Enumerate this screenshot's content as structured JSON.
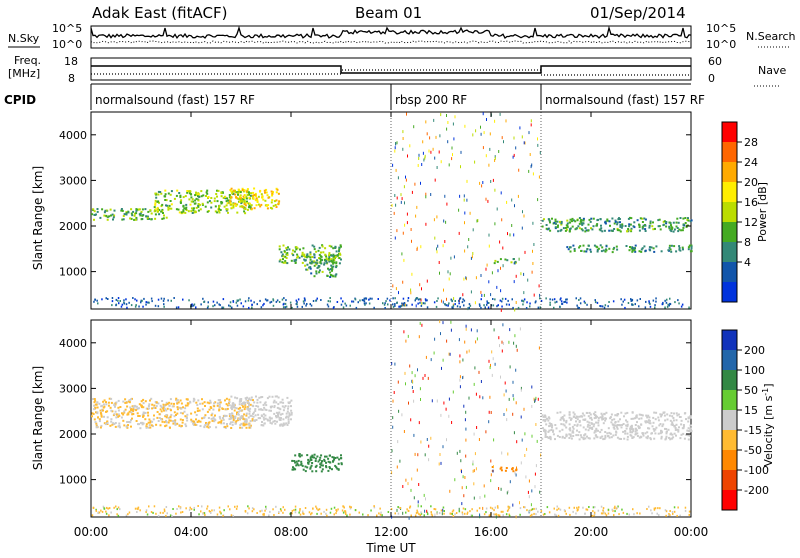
{
  "header": {
    "station": "Adak East (fitACF)",
    "beam": "Beam 01",
    "date": "01/Sep/2014"
  },
  "status_panels": {
    "left_labels": {
      "nsky": "N.Sky",
      "freq_top": "Freq.",
      "freq_unit": "[MHz]",
      "cpid": "CPID"
    },
    "right_labels": {
      "nsearch": "N.Search",
      "nave": "Nave"
    },
    "noise_ticks_left": [
      "10^5",
      "10^0"
    ],
    "noise_ticks_right": [
      "10^5",
      "10^0"
    ],
    "freq_ticks": [
      "18",
      "8"
    ],
    "nave_ticks": [
      "60",
      "0"
    ],
    "cpid_segments": [
      {
        "label": "normalsound (fast) 157 RF",
        "start_hour": 0,
        "end_hour": 12
      },
      {
        "label": "rbsp 200 RF",
        "start_hour": 12,
        "end_hour": 18
      },
      {
        "label": "normalsound (fast) 157 RF",
        "start_hour": 18,
        "end_hour": 24
      }
    ]
  },
  "chart_data": [
    {
      "type": "heatmap",
      "title": "Power",
      "ylabel": "Slant Range [km]",
      "xlabel": "",
      "xlim": [
        0,
        24
      ],
      "ylim": [
        180,
        4500
      ],
      "yticks": [
        1000,
        2000,
        3000,
        4000
      ],
      "colorbar": {
        "label": "Power [dB]",
        "ticks": [
          "28",
          "24",
          "20",
          "16",
          "12",
          "8",
          "4"
        ],
        "colors": [
          "#ff0000",
          "#ff6600",
          "#ffaa00",
          "#ffee00",
          "#bbdd00",
          "#44aa22",
          "#338877",
          "#1155aa",
          "#0033dd"
        ]
      },
      "regions": [
        {
          "t0": 0.0,
          "t1": 3.0,
          "r0": 2150,
          "r1": 2400,
          "value": 8
        },
        {
          "t0": 2.5,
          "t1": 6.5,
          "r0": 2300,
          "r1": 2800,
          "value": 10
        },
        {
          "t0": 5.5,
          "t1": 7.5,
          "r0": 2400,
          "r1": 2850,
          "value": 16
        },
        {
          "t0": 7.5,
          "t1": 10.0,
          "r0": 1200,
          "r1": 1600,
          "value": 8
        },
        {
          "t0": 8.5,
          "t1": 9.8,
          "r0": 900,
          "r1": 1400,
          "value": 6
        },
        {
          "t0": 16.0,
          "t1": 17.0,
          "r0": 1200,
          "r1": 1300,
          "value": 6
        },
        {
          "t0": 18.0,
          "t1": 24.0,
          "r0": 1900,
          "r1": 2200,
          "value": 6
        },
        {
          "t0": 19.0,
          "t1": 24.0,
          "r0": 1450,
          "r1": 1600,
          "value": 5
        }
      ]
    },
    {
      "type": "heatmap",
      "title": "Velocity",
      "ylabel": "Slant Range [km]",
      "xlabel": "Time UT",
      "xlim": [
        0,
        24
      ],
      "ylim": [
        180,
        4500
      ],
      "yticks": [
        1000,
        2000,
        3000,
        4000
      ],
      "xticks": [
        "00:00",
        "04:00",
        "08:00",
        "12:00",
        "16:00",
        "20:00",
        "00:00"
      ],
      "colorbar": {
        "label": "Velocity [m s^-1]",
        "ticks": [
          "200",
          "100",
          "50",
          "15",
          "-15",
          "-50",
          "-100",
          "-200"
        ],
        "colors": [
          "#1133bb",
          "#2266aa",
          "#338844",
          "#66cc33",
          "#cccccc",
          "#ffbb33",
          "#ff8800",
          "#ee4400",
          "#ff0000"
        ]
      },
      "regions": [
        {
          "t0": 0.0,
          "t1": 6.5,
          "r0": 2150,
          "r1": 2800,
          "value": -15
        },
        {
          "t0": 5.5,
          "t1": 8.0,
          "r0": 2200,
          "r1": 2850,
          "value": 0
        },
        {
          "t0": 8.0,
          "t1": 10.0,
          "r0": 1200,
          "r1": 1600,
          "value": 60
        },
        {
          "t0": 16.0,
          "t1": 17.0,
          "r0": 1200,
          "r1": 1300,
          "value": -60
        },
        {
          "t0": 18.0,
          "t1": 24.0,
          "r0": 1900,
          "r1": 2500,
          "value": 0
        }
      ]
    }
  ]
}
